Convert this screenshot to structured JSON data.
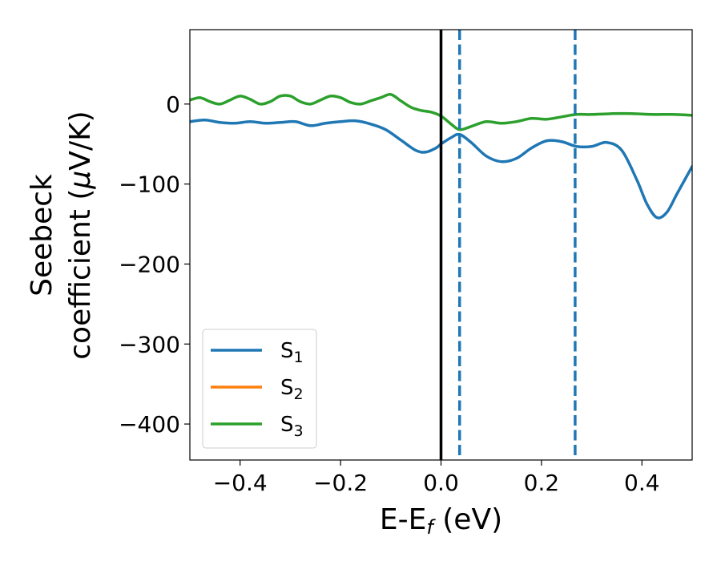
{
  "chart_data": {
    "type": "line",
    "xlabel": {
      "main": "E-E",
      "sub": "f",
      "tail": " (eV)"
    },
    "ylabel": {
      "line1": "Seebeck",
      "line2_pre": "coefficient  (",
      "line2_mu": "μ",
      "line2_post": "V/K)"
    },
    "xlim": [
      -0.5,
      0.5
    ],
    "ylim": [
      -445,
      93
    ],
    "xticks": [
      {
        "value": -0.4,
        "label": "−0.4"
      },
      {
        "value": -0.2,
        "label": "−0.2"
      },
      {
        "value": 0.0,
        "label": "0.0"
      },
      {
        "value": 0.2,
        "label": "0.2"
      },
      {
        "value": 0.4,
        "label": "0.4"
      }
    ],
    "yticks": [
      {
        "value": 0,
        "label": "0"
      },
      {
        "value": -100,
        "label": "−100"
      },
      {
        "value": -200,
        "label": "−200"
      },
      {
        "value": -300,
        "label": "−300"
      },
      {
        "value": -400,
        "label": "−400"
      }
    ],
    "vlines": [
      {
        "x": 0.0,
        "style": "solid",
        "color": "#000000"
      },
      {
        "x": 0.037,
        "style": "dashed",
        "color": "#1f77b4"
      },
      {
        "x": 0.267,
        "style": "dashed",
        "color": "#1f77b4"
      }
    ],
    "series": [
      {
        "name": "S",
        "sub": "1",
        "color": "#1f77b4",
        "x": [
          -0.5,
          -0.47,
          -0.44,
          -0.41,
          -0.38,
          -0.35,
          -0.32,
          -0.29,
          -0.26,
          -0.23,
          -0.2,
          -0.17,
          -0.14,
          -0.11,
          -0.08,
          -0.05,
          -0.03,
          -0.01,
          0.0,
          0.02,
          0.037,
          0.06,
          0.09,
          0.12,
          0.15,
          0.18,
          0.21,
          0.24,
          0.27,
          0.3,
          0.33,
          0.36,
          0.39,
          0.41,
          0.43,
          0.45,
          0.47,
          0.5
        ],
        "y": [
          -22,
          -20,
          -23,
          -24,
          -22,
          -24,
          -23,
          -22,
          -27,
          -24,
          -22,
          -21,
          -25,
          -32,
          -45,
          -58,
          -60,
          -55,
          -50,
          -42,
          -38,
          -48,
          -65,
          -72,
          -68,
          -55,
          -46,
          -47,
          -53,
          -53,
          -48,
          -58,
          -95,
          -125,
          -142,
          -135,
          -112,
          -78
        ]
      },
      {
        "name": "S",
        "sub": "2",
        "color": "#ff7f0e",
        "x": [],
        "y": []
      },
      {
        "name": "S",
        "sub": "3",
        "color": "#2ca02c",
        "x": [
          -0.5,
          -0.48,
          -0.46,
          -0.44,
          -0.42,
          -0.4,
          -0.38,
          -0.36,
          -0.34,
          -0.32,
          -0.3,
          -0.28,
          -0.26,
          -0.24,
          -0.22,
          -0.2,
          -0.18,
          -0.16,
          -0.14,
          -0.12,
          -0.1,
          -0.08,
          -0.06,
          -0.04,
          -0.02,
          0.0,
          0.02,
          0.037,
          0.06,
          0.09,
          0.12,
          0.15,
          0.18,
          0.21,
          0.24,
          0.27,
          0.3,
          0.34,
          0.38,
          0.42,
          0.46,
          0.5
        ],
        "y": [
          5,
          8,
          3,
          0,
          5,
          10,
          6,
          0,
          3,
          10,
          10,
          3,
          0,
          5,
          10,
          8,
          2,
          0,
          4,
          8,
          12,
          4,
          -4,
          -8,
          -10,
          -15,
          -25,
          -32,
          -28,
          -22,
          -24,
          -22,
          -18,
          -19,
          -16,
          -13,
          -13,
          -12,
          -12,
          -13,
          -13,
          -14
        ]
      }
    ],
    "legend": {
      "placement": "lower-left"
    }
  }
}
